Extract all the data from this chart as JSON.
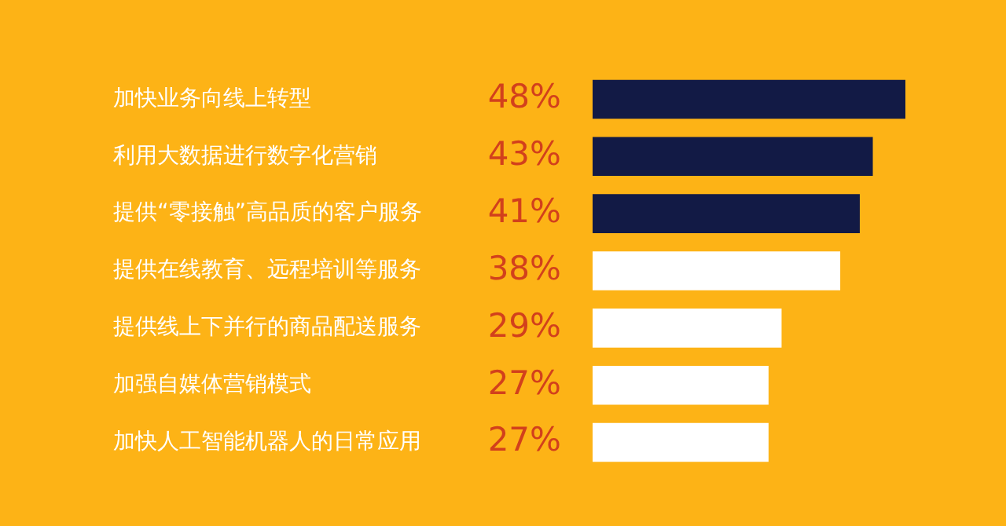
{
  "chart_data": {
    "type": "bar",
    "orientation": "horizontal",
    "categories": [
      "加快业务向线上转型",
      "利用大数据进行数字化营销",
      "提供“零接触”高品质的客户服务",
      "提供在线教育、远程培训等服务",
      "提供线上下并行的商品配送服务",
      "加强自媒体营销模式",
      "加快人工智能机器人的日常应用"
    ],
    "values": [
      48,
      43,
      41,
      38,
      29,
      27,
      27
    ],
    "colors": [
      "#121a45",
      "#121a45",
      "#121a45",
      "#ffffff",
      "#ffffff",
      "#ffffff",
      "#ffffff"
    ],
    "value_labels": [
      "48%",
      "43%",
      "41%",
      "38%",
      "29%",
      "27%",
      "27%"
    ],
    "legend": false
  }
}
